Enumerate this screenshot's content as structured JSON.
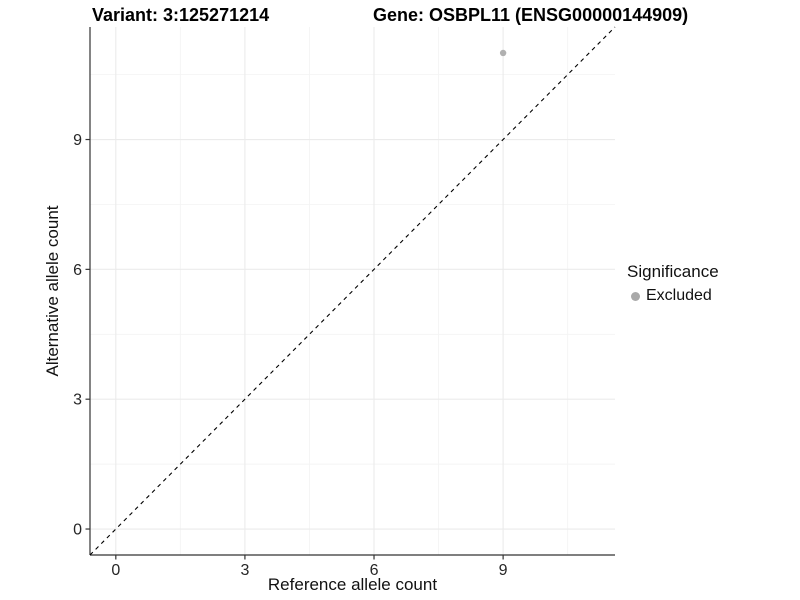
{
  "chart_data": {
    "type": "scatter",
    "title_left": "Variant: 3:125271214",
    "title_right": "Gene: OSBPL11 (ENSG00000144909)",
    "xlabel": "Reference allele count",
    "ylabel": "Alternative allele count",
    "xlim": [
      -0.6,
      11.6
    ],
    "ylim": [
      -0.6,
      11.6
    ],
    "xticks": [
      0,
      3,
      6,
      9
    ],
    "yticks": [
      0,
      3,
      6,
      9
    ],
    "x_minor_ticks": [
      1.5,
      4.5,
      7.5,
      10.5
    ],
    "y_minor_ticks": [
      1.5,
      4.5,
      7.5,
      10.5
    ],
    "grid": "major+minor",
    "series": [
      {
        "name": "Excluded",
        "marker": "circle",
        "color": "#b0b0b0",
        "points": [
          {
            "x": 9,
            "y": 11
          }
        ]
      }
    ],
    "reference_line": {
      "kind": "identity y=x",
      "style": "dashed",
      "color": "#000000",
      "from": -0.6,
      "to": 11.6
    },
    "legend": {
      "title": "Significance",
      "position": "right",
      "entries": [
        {
          "label": "Excluded",
          "marker": "circle",
          "color": "#a9a9a9"
        }
      ]
    },
    "colors": {
      "background": "#ffffff",
      "grid_major": "#ebebeb",
      "grid_minor": "#f4f4f4",
      "axis_line": "#333333",
      "tick_text": "#262626",
      "title_text": "#000000"
    }
  }
}
